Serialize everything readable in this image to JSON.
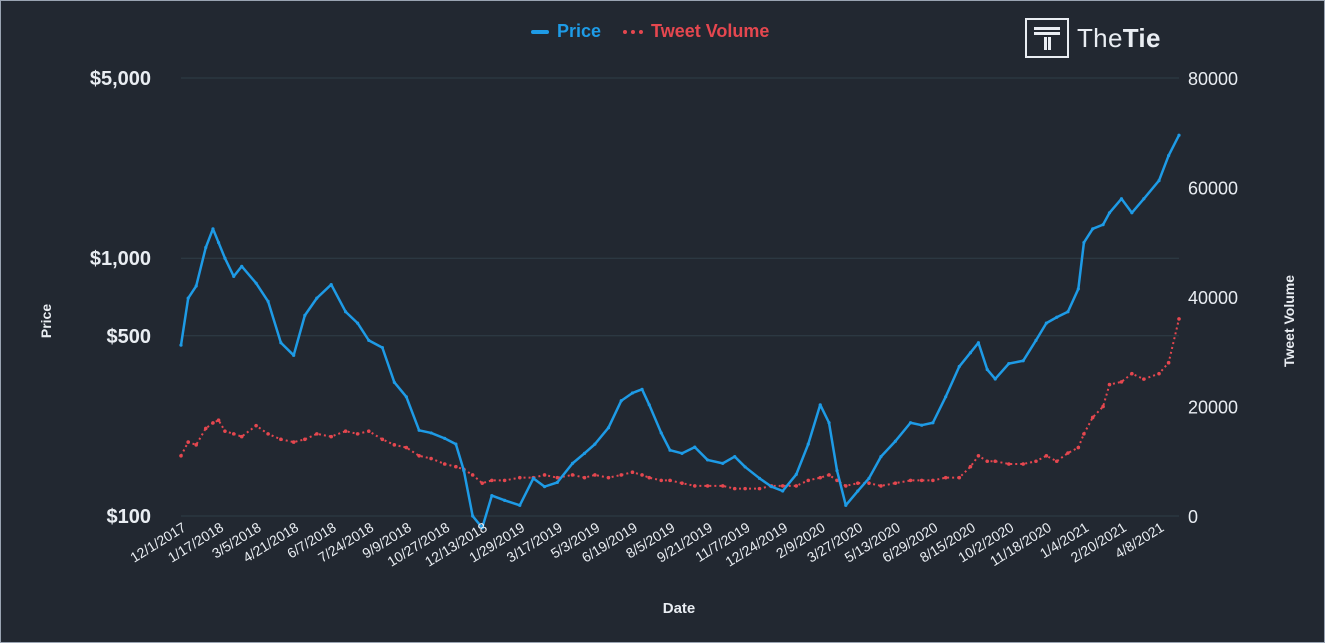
{
  "colors": {
    "background": "#222831",
    "price": "#1e9be6",
    "tweet_volume": "#e5474f",
    "grid": "#2f3e48",
    "axis_text": "#e9edf2"
  },
  "logo": {
    "prefix": "The",
    "bold": "Tie",
    "icon": "thetie-logo-icon"
  },
  "chart_data": {
    "type": "line",
    "xlabel": "Date",
    "ylabel_left": "Price",
    "ylabel_right": "Tweet Volume",
    "left_axis_scale": "log",
    "grid": true,
    "legend_position": "top-center",
    "x_tick_labels": [
      "12/1/2017",
      "1/17/2018",
      "3/5/2018",
      "4/21/2018",
      "6/7/2018",
      "7/24/2018",
      "9/9/2018",
      "10/27/2018",
      "12/13/2018",
      "1/29/2019",
      "3/17/2019",
      "5/3/2019",
      "6/19/2019",
      "8/5/2019",
      "9/21/2019",
      "11/7/2019",
      "12/24/2019",
      "2/9/2020",
      "3/27/2020",
      "5/13/2020",
      "6/29/2020",
      "8/15/2020",
      "10/2/2020",
      "11/18/2020",
      "1/4/2021",
      "2/20/2021",
      "4/8/2021"
    ],
    "y_left_ticks": [
      {
        "value": 100,
        "label": "$100"
      },
      {
        "value": 500,
        "label": "$500"
      },
      {
        "value": 1000,
        "label": "$1,000"
      },
      {
        "value": 5000,
        "label": "$5,000"
      }
    ],
    "y_left_range": [
      100,
      5000
    ],
    "y_right_ticks": [
      {
        "value": 0,
        "label": "0"
      },
      {
        "value": 20000,
        "label": "20000"
      },
      {
        "value": 40000,
        "label": "40000"
      },
      {
        "value": 60000,
        "label": "60000"
      },
      {
        "value": 80000,
        "label": "80000"
      }
    ],
    "y_right_range": [
      0,
      80000
    ],
    "series": [
      {
        "name": "Price",
        "axis": "left",
        "style": "solid",
        "x": [
          "12/1/2017",
          "12/10/2017",
          "12/20/2017",
          "1/1/2018",
          "1/10/2018",
          "1/17/2018",
          "1/25/2018",
          "2/5/2018",
          "2/15/2018",
          "3/5/2018",
          "3/20/2018",
          "4/5/2018",
          "4/21/2018",
          "5/5/2018",
          "5/20/2018",
          "6/7/2018",
          "6/25/2018",
          "7/10/2018",
          "7/24/2018",
          "8/10/2018",
          "8/25/2018",
          "9/9/2018",
          "9/25/2018",
          "10/10/2018",
          "10/27/2018",
          "11/10/2018",
          "11/20/2018",
          "12/1/2018",
          "12/13/2018",
          "12/25/2018",
          "1/10/2019",
          "1/29/2019",
          "2/15/2019",
          "3/1/2019",
          "3/17/2019",
          "4/5/2019",
          "4/20/2019",
          "5/3/2019",
          "5/20/2019",
          "6/5/2019",
          "6/19/2019",
          "7/1/2019",
          "7/10/2019",
          "7/25/2019",
          "8/5/2019",
          "8/20/2019",
          "9/5/2019",
          "9/21/2019",
          "10/10/2019",
          "10/25/2019",
          "11/7/2019",
          "11/25/2019",
          "12/10/2019",
          "12/24/2019",
          "1/10/2020",
          "1/25/2020",
          "2/9/2020",
          "2/20/2020",
          "3/1/2020",
          "3/12/2020",
          "3/27/2020",
          "4/10/2020",
          "4/25/2020",
          "5/13/2020",
          "6/1/2020",
          "6/15/2020",
          "6/29/2020",
          "7/15/2020",
          "8/1/2020",
          "8/15/2020",
          "8/25/2020",
          "9/5/2020",
          "9/15/2020",
          "10/2/2020",
          "10/20/2020",
          "11/5/2020",
          "11/18/2020",
          "12/1/2020",
          "12/15/2020",
          "12/28/2020",
          "1/4/2021",
          "1/15/2021",
          "1/28/2021",
          "2/5/2021",
          "2/20/2021",
          "3/5/2021",
          "3/20/2021",
          "4/8/2021",
          "4/20/2021",
          "5/3/2021"
        ],
        "values": [
          460,
          700,
          780,
          1100,
          1300,
          1150,
          1000,
          850,
          930,
          800,
          680,
          470,
          420,
          600,
          700,
          790,
          620,
          560,
          480,
          450,
          330,
          290,
          215,
          210,
          200,
          190,
          150,
          100,
          90,
          120,
          115,
          110,
          140,
          130,
          135,
          160,
          175,
          190,
          220,
          280,
          300,
          310,
          270,
          210,
          180,
          175,
          185,
          165,
          160,
          170,
          155,
          140,
          130,
          125,
          145,
          190,
          270,
          230,
          150,
          110,
          125,
          140,
          170,
          195,
          230,
          225,
          230,
          290,
          380,
          430,
          470,
          370,
          340,
          390,
          400,
          480,
          560,
          590,
          620,
          760,
          1150,
          1300,
          1350,
          1500,
          1700,
          1500,
          1700,
          2000,
          2500,
          3000
        ]
      },
      {
        "name": "Tweet Volume",
        "axis": "right",
        "style": "dotted",
        "x": [
          "12/1/2017",
          "12/10/2017",
          "12/20/2017",
          "1/1/2018",
          "1/10/2018",
          "1/17/2018",
          "1/25/2018",
          "2/5/2018",
          "2/15/2018",
          "3/5/2018",
          "3/20/2018",
          "4/5/2018",
          "4/21/2018",
          "5/5/2018",
          "5/20/2018",
          "6/7/2018",
          "6/25/2018",
          "7/10/2018",
          "7/24/2018",
          "8/10/2018",
          "8/25/2018",
          "9/9/2018",
          "9/25/2018",
          "10/10/2018",
          "10/27/2018",
          "11/10/2018",
          "11/20/2018",
          "12/1/2018",
          "12/13/2018",
          "12/25/2018",
          "1/10/2019",
          "1/29/2019",
          "2/15/2019",
          "3/1/2019",
          "3/17/2019",
          "4/5/2019",
          "4/20/2019",
          "5/3/2019",
          "5/20/2019",
          "6/5/2019",
          "6/19/2019",
          "7/1/2019",
          "7/10/2019",
          "7/25/2019",
          "8/5/2019",
          "8/20/2019",
          "9/5/2019",
          "9/21/2019",
          "10/10/2019",
          "10/25/2019",
          "11/7/2019",
          "11/25/2019",
          "12/10/2019",
          "12/24/2019",
          "1/10/2020",
          "1/25/2020",
          "2/9/2020",
          "2/20/2020",
          "3/1/2020",
          "3/12/2020",
          "3/27/2020",
          "4/10/2020",
          "4/25/2020",
          "5/13/2020",
          "6/1/2020",
          "6/15/2020",
          "6/29/2020",
          "7/15/2020",
          "8/1/2020",
          "8/15/2020",
          "8/25/2020",
          "9/5/2020",
          "9/15/2020",
          "10/2/2020",
          "10/20/2020",
          "11/5/2020",
          "11/18/2020",
          "12/1/2020",
          "12/15/2020",
          "12/28/2020",
          "1/4/2021",
          "1/15/2021",
          "1/28/2021",
          "2/5/2021",
          "2/20/2021",
          "3/5/2021",
          "3/20/2021",
          "4/8/2021",
          "4/20/2021",
          "5/3/2021"
        ],
        "values": [
          11000,
          13500,
          13000,
          16000,
          17000,
          17500,
          15500,
          15000,
          14500,
          16500,
          15000,
          14000,
          13500,
          14000,
          15000,
          14500,
          15500,
          15000,
          15500,
          14000,
          13000,
          12500,
          11000,
          10500,
          9500,
          9000,
          8500,
          7500,
          6000,
          6500,
          6500,
          7000,
          7000,
          7500,
          7000,
          7500,
          7000,
          7500,
          7000,
          7500,
          8000,
          7500,
          7000,
          6500,
          6500,
          6000,
          5500,
          5500,
          5500,
          5000,
          5000,
          5000,
          5500,
          5500,
          5500,
          6500,
          7000,
          7500,
          6500,
          5500,
          6000,
          6000,
          5500,
          6000,
          6500,
          6500,
          6500,
          7000,
          7000,
          9000,
          11000,
          10000,
          10000,
          9500,
          9500,
          10000,
          11000,
          10000,
          11500,
          12500,
          15000,
          18000,
          20000,
          24000,
          24500,
          26000,
          25000,
          26000,
          28000,
          36000
        ]
      }
    ]
  }
}
